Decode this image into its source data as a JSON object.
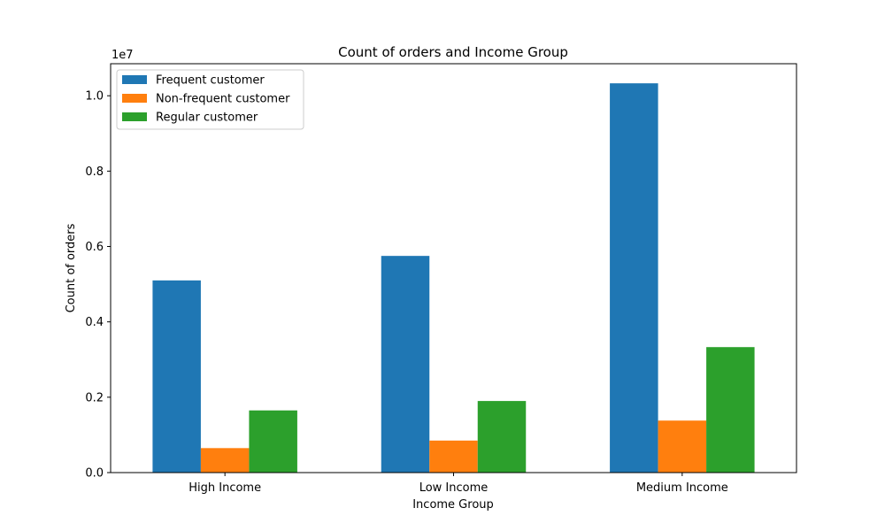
{
  "chart_data": {
    "type": "bar",
    "title": "Count of orders and Income Group",
    "xlabel": "Income Group",
    "ylabel": "Count of orders",
    "y_offset_label": "1e7",
    "y_scale": 10000000,
    "categories": [
      "High Income",
      "Low Income",
      "Medium Income"
    ],
    "series": [
      {
        "name": "Frequent customer",
        "color": "#1f77b4",
        "values": [
          5100000,
          5750000,
          10330000
        ]
      },
      {
        "name": "Non-frequent customer",
        "color": "#ff7f0e",
        "values": [
          650000,
          850000,
          1380000
        ]
      },
      {
        "name": "Regular customer",
        "color": "#2ca02c",
        "values": [
          1650000,
          1900000,
          3330000
        ]
      }
    ],
    "ylim": [
      0,
      10850000
    ],
    "y_ticks": [
      0,
      0.2,
      0.4,
      0.6,
      0.8,
      1.0
    ],
    "y_tick_labels": [
      "0.0",
      "0.2",
      "0.4",
      "0.6",
      "0.8",
      "1.0"
    ],
    "grid": false,
    "legend_position": "top-left"
  }
}
